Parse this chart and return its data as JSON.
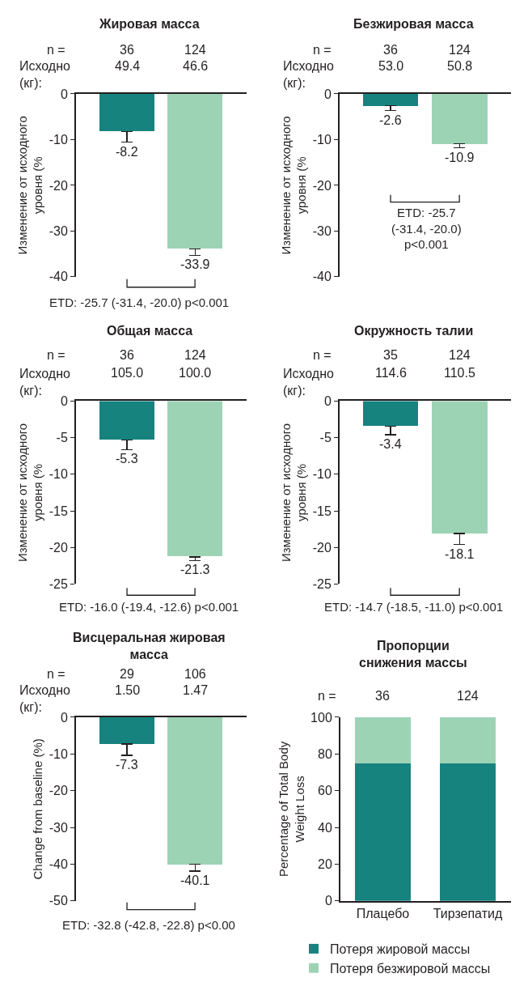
{
  "chart_data": [
    {
      "type": "bar",
      "title": "Жировая масса",
      "ylabel": "Изменение от исходного\nуровня (%",
      "categories": [
        null,
        null
      ],
      "values": [
        -8.2,
        -33.9
      ],
      "colors": [
        "#17837e",
        "#9dd3b5"
      ],
      "errors": [
        [
          -10.6,
          -8.2
        ],
        [
          -35.3,
          -33.9
        ]
      ],
      "data_labels": true,
      "ylim": [
        -40,
        0
      ],
      "yticks": [
        0,
        -10,
        -20,
        -30,
        -40
      ],
      "annotations": [
        "n =",
        "36",
        "124",
        "Исходно\n(кг):",
        "49.4",
        "46.6",
        "ETD: -25.7 (-31.4, -20.0) p<0.001"
      ]
    },
    {
      "type": "bar",
      "title": "Безжировая масса",
      "ylabel": "Изменение от исходного\nуровня (%",
      "categories": [
        null,
        null
      ],
      "values": [
        -2.6,
        -10.9
      ],
      "colors": [
        "#17837e",
        "#9dd3b5"
      ],
      "errors": [
        [
          -3.7,
          -2.6
        ],
        [
          -11.8,
          -10.9
        ]
      ],
      "data_labels": true,
      "ylim": [
        -40,
        0
      ],
      "yticks": [
        0,
        -10,
        -20,
        -30,
        -40
      ],
      "annotations": [
        "n =",
        "36",
        "124",
        "Исходно\n(кг):",
        "53.0",
        "50.8",
        "ETD: -25.7\n(-31.4, -20.0)\np<0.001"
      ]
    },
    {
      "type": "bar",
      "title": "Общая масса",
      "ylabel": "Изменение от исходного\nуровня (%",
      "categories": [
        null,
        null
      ],
      "values": [
        -5.3,
        -21.3
      ],
      "colors": [
        "#17837e",
        "#9dd3b5"
      ],
      "errors": [
        [
          -6.6,
          -5.3
        ],
        [
          -21.8,
          -21.3
        ]
      ],
      "data_labels": true,
      "ylim": [
        -25,
        0
      ],
      "yticks": [
        0,
        -5,
        -10,
        -15,
        -20,
        -25
      ],
      "annotations": [
        "n =",
        "36",
        "124",
        "Исходно\n(кг):",
        "105.0",
        "100.0",
        "ETD: -16.0 (-19.4, -12.6) p<0.001"
      ]
    },
    {
      "type": "bar",
      "title": "Окружность талии",
      "ylabel": "Изменение от исходного\nуровня (%",
      "categories": [
        null,
        null
      ],
      "values": [
        -3.4,
        -18.1
      ],
      "colors": [
        "#17837e",
        "#9dd3b5"
      ],
      "errors": [
        [
          -4.6,
          -3.4
        ],
        [
          -19.6,
          -18.1
        ]
      ],
      "data_labels": true,
      "ylim": [
        -25,
        0
      ],
      "yticks": [
        0,
        -5,
        -10,
        -15,
        -20,
        -25
      ],
      "annotations": [
        "n =",
        "35",
        "124",
        "Исходно\n(кг):",
        "114.6",
        "110.5",
        "ETD: -14.7 (-18.5, -11.0) p<0.001"
      ]
    },
    {
      "type": "bar",
      "title": "Висцеральная жировая\nмасса",
      "ylabel": "Change from baseline (%)",
      "categories": [
        null,
        null
      ],
      "values": [
        -7.3,
        -40.1
      ],
      "colors": [
        "#17837e",
        "#9dd3b5"
      ],
      "errors": [
        [
          -10.4,
          -7.3
        ],
        [
          -41.9,
          -40.1
        ]
      ],
      "data_labels": true,
      "ylim": [
        -50,
        0
      ],
      "yticks": [
        0,
        -10,
        -20,
        -30,
        -40,
        -50
      ],
      "annotations": [
        "n =",
        "29",
        "106",
        "Исходно\n(кг):",
        "1.50",
        "1.47",
        "ETD: -32.8 (-42.8, -22.8) p<0.00"
      ]
    },
    {
      "type": "bar",
      "title": "Пропорции\nснижения массы",
      "ylabel": "Percentage of Total Body\nWeight Loss",
      "categories": [
        "Плацебо",
        "Тирзепатид"
      ],
      "stacked": true,
      "legend": "bottom",
      "ylim": [
        0,
        100
      ],
      "yticks": [
        0,
        20,
        40,
        60,
        80,
        100
      ],
      "series": [
        {
          "name": "Потеря жировой массы",
          "color": "#17837e",
          "values": [
            75,
            75
          ]
        },
        {
          "name": "Потеря безжировой массы",
          "color": "#9dd3b5",
          "values": [
            25,
            25
          ]
        }
      ],
      "annotations": [
        "n =",
        "36",
        "124"
      ]
    }
  ]
}
